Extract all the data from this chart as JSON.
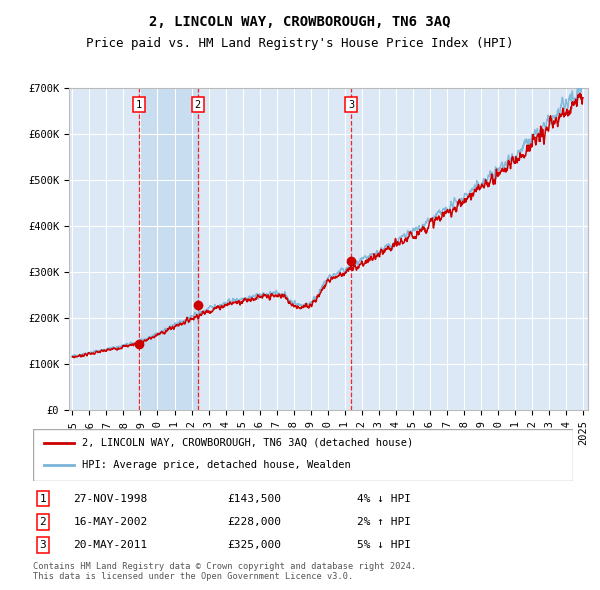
{
  "title": "2, LINCOLN WAY, CROWBOROUGH, TN6 3AQ",
  "subtitle": "Price paid vs. HM Land Registry's House Price Index (HPI)",
  "ylim": [
    0,
    700000
  ],
  "yticks": [
    0,
    100000,
    200000,
    300000,
    400000,
    500000,
    600000,
    700000
  ],
  "ytick_labels": [
    "£0",
    "£100K",
    "£200K",
    "£300K",
    "£400K",
    "£500K",
    "£600K",
    "£700K"
  ],
  "x_start_year": 1995,
  "x_end_year": 2025,
  "hpi_color": "#7ab4d8",
  "price_color": "#cc0000",
  "plot_bg": "#dce8f5",
  "span_bg": "#c8ddf0",
  "grid_color": "#ffffff",
  "sale_decimal": [
    1998.91,
    2002.37,
    2011.38
  ],
  "sale_prices": [
    143500,
    228000,
    325000
  ],
  "sale_labels": [
    "1",
    "2",
    "3"
  ],
  "sale_annotations": [
    {
      "label": "1",
      "date": "27-NOV-1998",
      "price": "£143,500",
      "change": "4% ↓ HPI"
    },
    {
      "label": "2",
      "date": "16-MAY-2002",
      "price": "£228,000",
      "change": "2% ↑ HPI"
    },
    {
      "label": "3",
      "date": "20-MAY-2011",
      "price": "£325,000",
      "change": "5% ↓ HPI"
    }
  ],
  "legend_entries": [
    {
      "label": "2, LINCOLN WAY, CROWBOROUGH, TN6 3AQ (detached house)",
      "color": "#cc0000"
    },
    {
      "label": "HPI: Average price, detached house, Wealden",
      "color": "#7ab4d8"
    }
  ],
  "footer": "Contains HM Land Registry data © Crown copyright and database right 2024.\nThis data is licensed under the Open Government Licence v3.0.",
  "title_fontsize": 10,
  "subtitle_fontsize": 9,
  "tick_fontsize": 7.5
}
